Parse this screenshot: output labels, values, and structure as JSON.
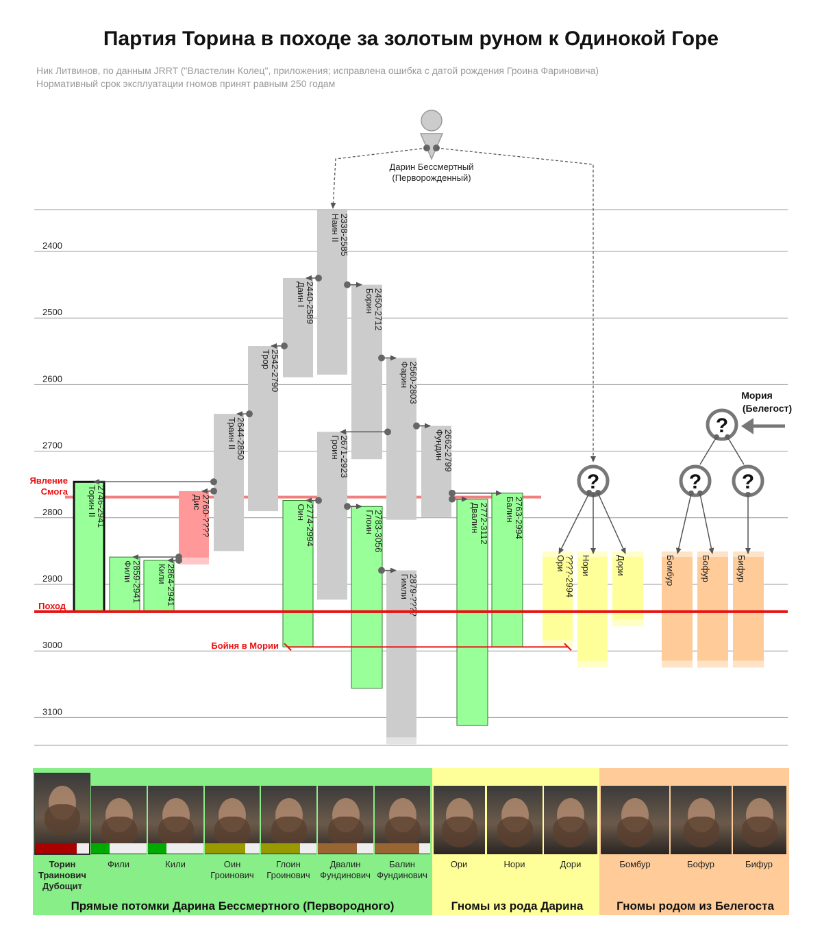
{
  "title": "Партия Торина в походе за золотым руном к Одинокой Горе",
  "subtitle1": "Ник Литвинов, по данным JRRT (\"Властелин Колец\", приложения; исправлена ошибка с датой рождения Гроина Фариновича)",
  "subtitle2": "Нормативный срок эксплуатации гномов принят равным 250 годам",
  "chart_data": {
    "type": "timeline",
    "y_axis": {
      "range": [
        2340,
        3140
      ],
      "ticks": [
        2400,
        2500,
        2600,
        2700,
        2800,
        2900,
        3000,
        3100
      ],
      "direction": "down"
    },
    "ancestor": {
      "name": "Дарин Бессмертный",
      "note": "(Перворожденный)"
    },
    "other_origin": {
      "name": "Мория",
      "note": "(Белегост)"
    },
    "events": [
      {
        "label": "Явление Смога",
        "label_lines": [
          "Явление",
          "Смога"
        ],
        "year": 2770
      },
      {
        "label": "Поход",
        "year": 2941
      },
      {
        "label": "Бойня в Мории",
        "year": 2994
      }
    ],
    "dwarves": [
      {
        "name": "Наин II",
        "years": "2338-2585",
        "start": 2338,
        "end": 2585,
        "color": "gray"
      },
      {
        "name": "Даин I",
        "years": "2440-2589",
        "start": 2440,
        "end": 2589,
        "color": "gray"
      },
      {
        "name": "Борин",
        "years": "2450-2712",
        "start": 2450,
        "end": 2712,
        "color": "gray"
      },
      {
        "name": "Трор",
        "years": "2542-2790",
        "start": 2542,
        "end": 2790,
        "color": "gray"
      },
      {
        "name": "Фарин",
        "years": "2560-2803",
        "start": 2560,
        "end": 2803,
        "color": "gray"
      },
      {
        "name": "Траин II",
        "years": "2644-2850",
        "start": 2644,
        "end": 2850,
        "color": "gray"
      },
      {
        "name": "Гроин",
        "years": "2671-2923",
        "start": 2671,
        "end": 2923,
        "color": "gray"
      },
      {
        "name": "Фундин",
        "years": "2662-2799",
        "start": 2662,
        "end": 2799,
        "color": "gray"
      },
      {
        "name": "Торин II",
        "years": "2746-2941",
        "start": 2746,
        "end": 2941,
        "color": "green"
      },
      {
        "name": "Дис",
        "years": "2760-????",
        "start": 2760,
        "end": 2870,
        "color": "pink"
      },
      {
        "name": "Фили",
        "years": "2859-2941",
        "start": 2859,
        "end": 2941,
        "color": "green"
      },
      {
        "name": "Кили",
        "years": "2864-2941",
        "start": 2864,
        "end": 2941,
        "color": "green"
      },
      {
        "name": "Оин",
        "years": "2774-2994",
        "start": 2774,
        "end": 2994,
        "color": "green"
      },
      {
        "name": "Глоин",
        "years": "2783-3056",
        "start": 2783,
        "end": 3056,
        "color": "green"
      },
      {
        "name": "Гимли",
        "years": "2879-????",
        "start": 2879,
        "end": 3140,
        "color": "gray"
      },
      {
        "name": "Двалин",
        "years": "2772-3112",
        "start": 2772,
        "end": 3112,
        "color": "green"
      },
      {
        "name": "Балин",
        "years": "2763-2994",
        "start": 2763,
        "end": 2994,
        "color": "green"
      },
      {
        "name": "Ори",
        "years": "????-2994",
        "start": 2855,
        "end": 2994,
        "color": "yellow"
      },
      {
        "name": "Нори",
        "years": "",
        "start": 2855,
        "end": 3025,
        "color": "yellow"
      },
      {
        "name": "Дори",
        "years": "",
        "start": 2855,
        "end": 2963,
        "color": "yellow"
      },
      {
        "name": "Бомбур",
        "years": "",
        "start": 2855,
        "end": 3025,
        "color": "orange"
      },
      {
        "name": "Бофур",
        "years": "",
        "start": 2855,
        "end": 3025,
        "color": "orange"
      },
      {
        "name": "Бифур",
        "years": "",
        "start": 2855,
        "end": 3025,
        "color": "orange"
      }
    ]
  },
  "members": [
    {
      "name": "Торин Траинович Дубощит",
      "lines": [
        "Торин",
        "Траинович",
        "Дубощит"
      ]
    },
    {
      "name": "Фили",
      "lines": [
        "Фили"
      ]
    },
    {
      "name": "Кили",
      "lines": [
        "Кили"
      ]
    },
    {
      "name": "Оин Гроинович",
      "lines": [
        "Оин",
        "Гроинович"
      ]
    },
    {
      "name": "Глоин Гроинович",
      "lines": [
        "Глоин",
        "Гроинович"
      ]
    },
    {
      "name": "Двалин Фундинович",
      "lines": [
        "Двалин",
        "Фундинович"
      ]
    },
    {
      "name": "Балин Фундинович",
      "lines": [
        "Балин",
        "Фундинович"
      ]
    },
    {
      "name": "Ори",
      "lines": [
        "Ори"
      ]
    },
    {
      "name": "Нори",
      "lines": [
        "Нори"
      ]
    },
    {
      "name": "Дори",
      "lines": [
        "Дори"
      ]
    },
    {
      "name": "Бомбур",
      "lines": [
        "Бомбур"
      ]
    },
    {
      "name": "Бофур",
      "lines": [
        "Бофур"
      ]
    },
    {
      "name": "Бифур",
      "lines": [
        "Бифур"
      ]
    }
  ],
  "groups": {
    "direct": "Прямые потомки Дарина Бессмертного (Первородного)",
    "durin_line": "Гномы из рода Дарина",
    "belegost": "Гномы родом из Белегоста"
  },
  "colors": {
    "green": "#99ff99",
    "gray": "#cccccc",
    "pink": "#ff9999",
    "yellow": "#ffff99",
    "orange": "#ffcc99",
    "event": "#e81010",
    "panel_green": "#88ee88",
    "panel_yellow": "#ffff99",
    "panel_orange": "#ffcc99",
    "bar_red": "#aa0000",
    "bar_green": "#00aa00",
    "bar_olive": "#999900",
    "bar_brown": "#996633"
  }
}
